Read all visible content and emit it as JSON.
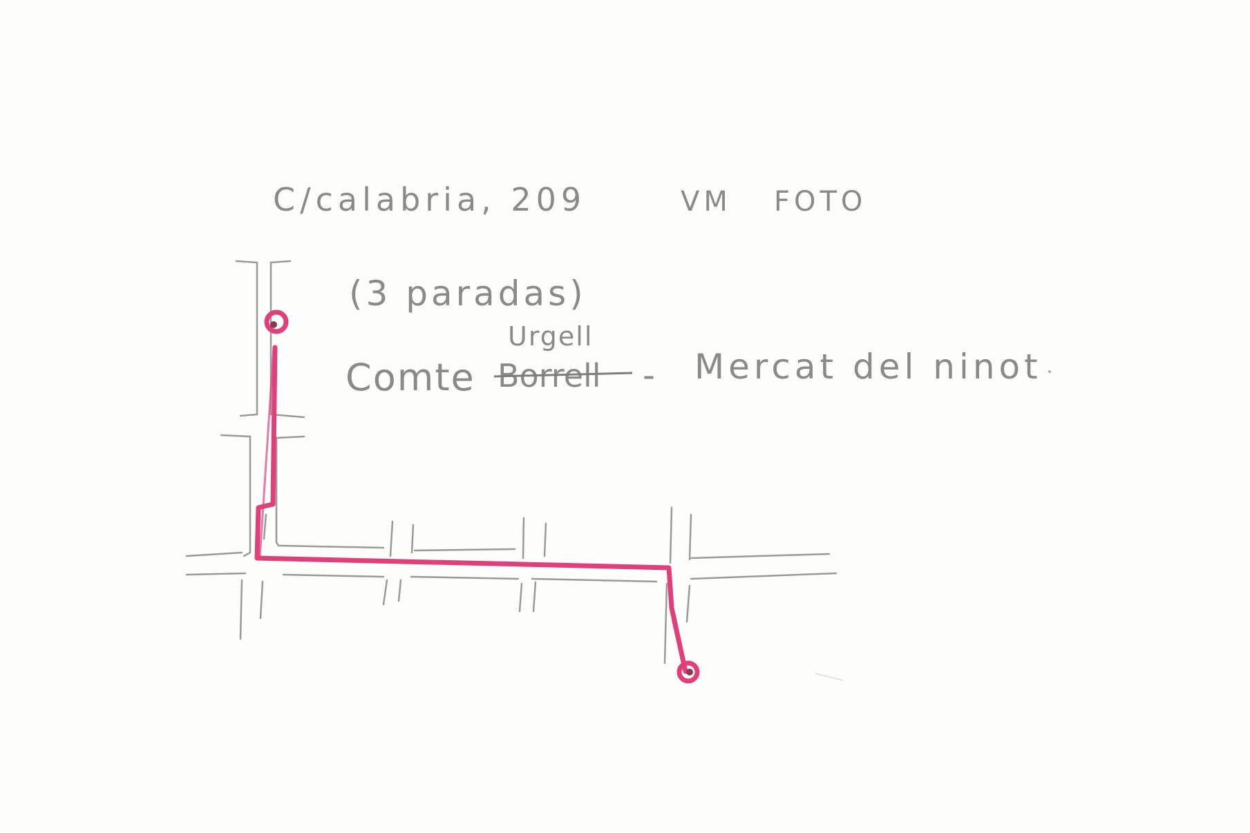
{
  "header": {
    "address": "C/calabria, 209",
    "code": "VM",
    "photo_label": "FOTO"
  },
  "notes": {
    "stops": "(3 paradas)",
    "street_correction": "Urgell",
    "street_struck": "Borrell",
    "route_from": "Comte",
    "separator": "-",
    "route_to": "Mercat del ninot"
  },
  "colors": {
    "pencil": "#8a8a8a",
    "route": "#e0407a"
  }
}
